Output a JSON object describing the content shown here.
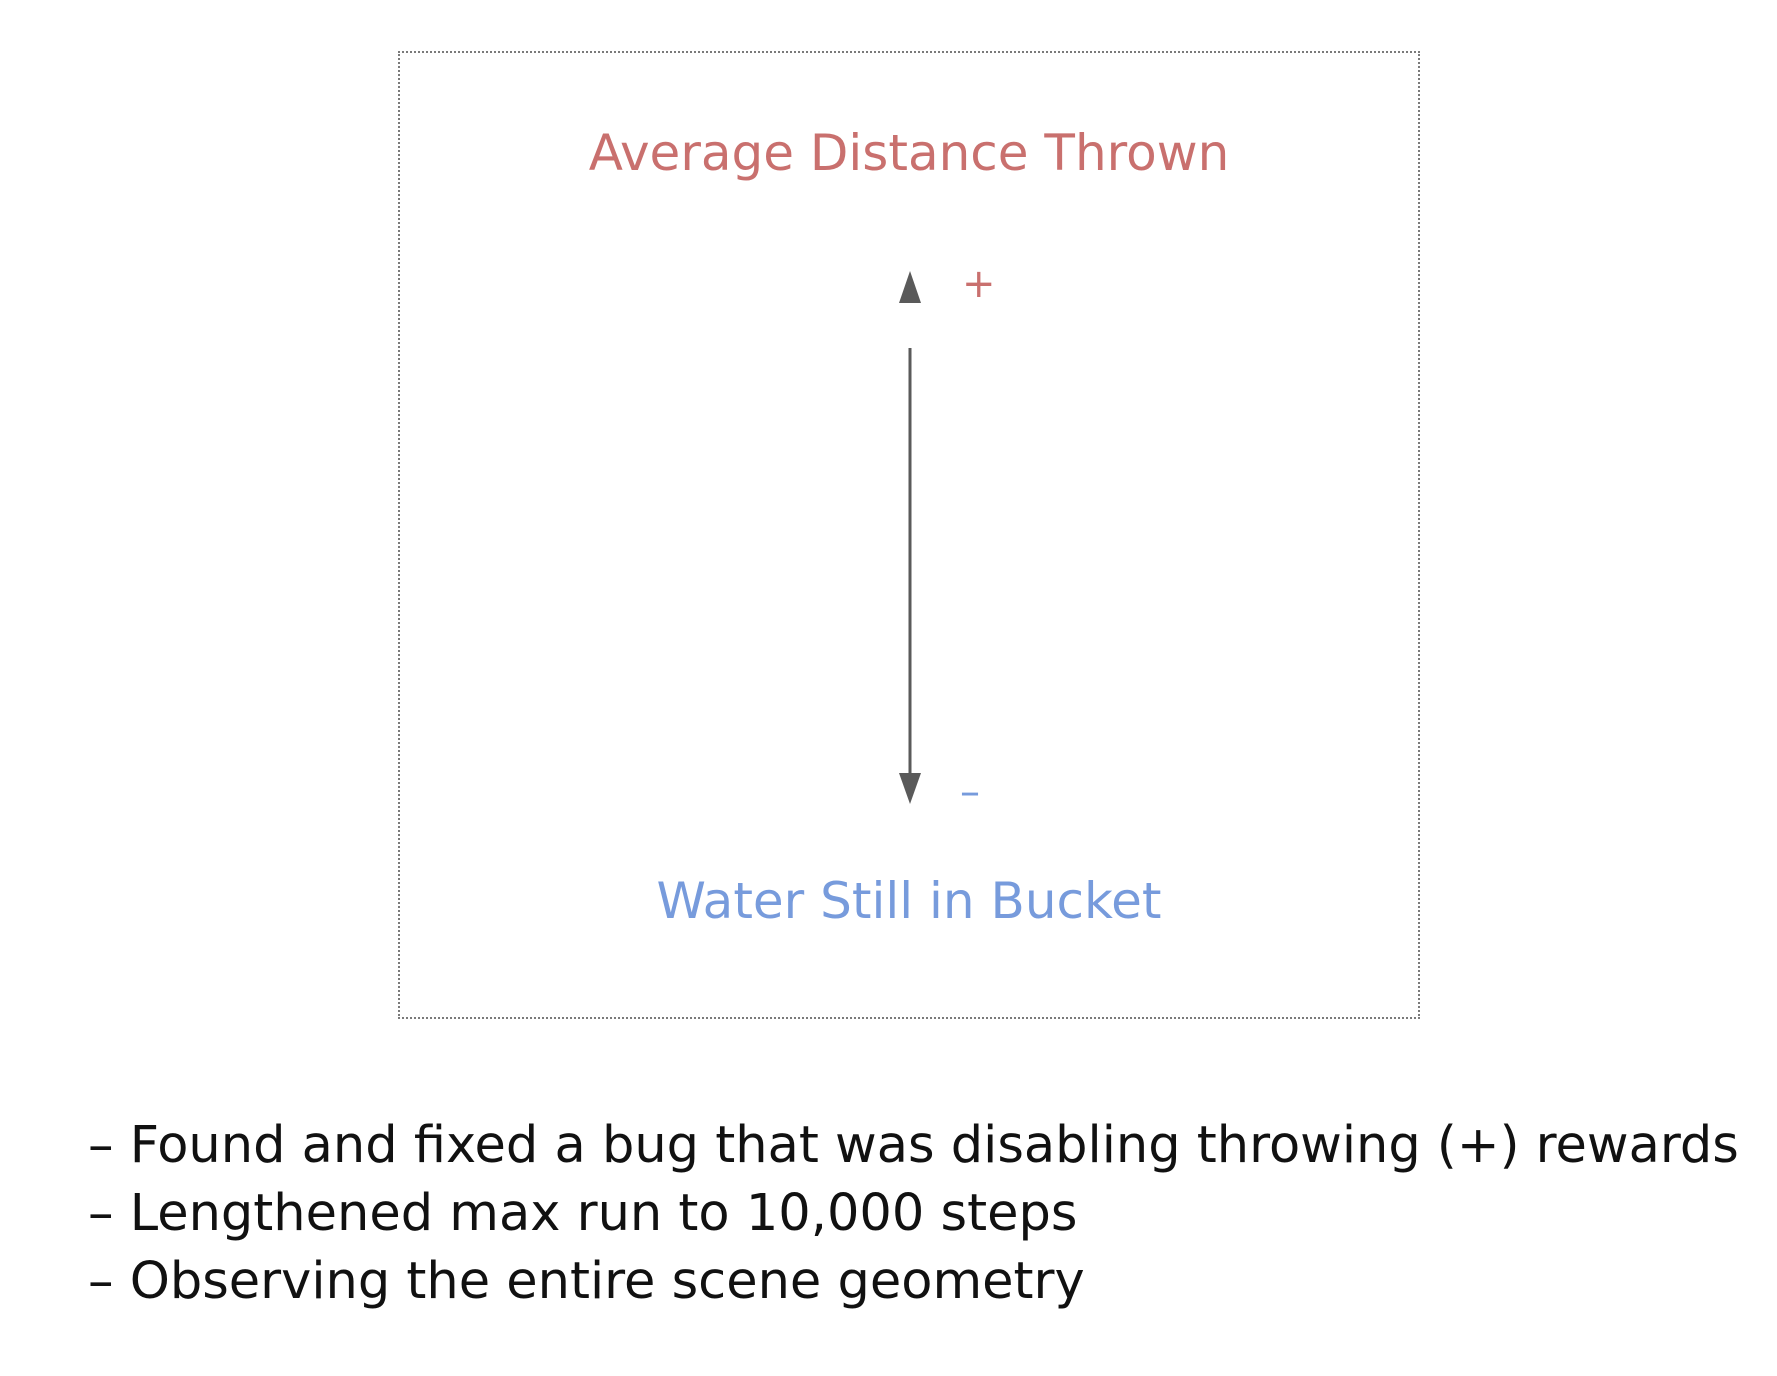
{
  "diagram": {
    "top_label": "Average Distance Thrown",
    "bottom_label": "Water Still in Bucket",
    "plus_sign": "+",
    "minus_sign": "–",
    "colors": {
      "top": "#c9706e",
      "bottom": "#779bdc",
      "arrow": "#5a5a5a"
    }
  },
  "notes": [
    "– Found and fixed a bug that was disabling throwing (+) rewards",
    "– Lengthened max run to 10,000 steps",
    "– Observing the entire scene geometry"
  ]
}
